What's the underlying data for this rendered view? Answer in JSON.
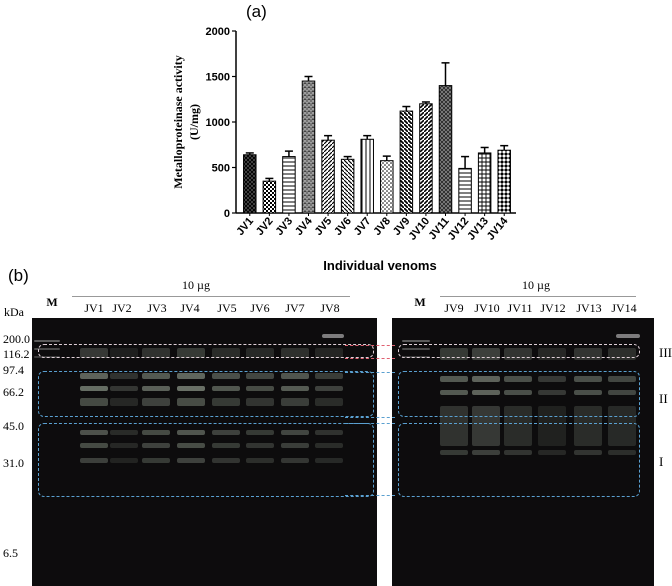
{
  "panel_a_label": "(a)",
  "panel_b_label": "(b)",
  "chart_data": {
    "type": "bar",
    "title": "",
    "xlabel": "Individual venoms",
    "ylabel": "Metalloproteinase activity\n(U/mg)",
    "ylim": [
      0,
      2000
    ],
    "yticks": [
      0,
      500,
      1000,
      1500,
      2000
    ],
    "grid": false,
    "categories": [
      "JV1",
      "JV2",
      "JV3",
      "JV4",
      "JV5",
      "JV6",
      "JV7",
      "JV8",
      "JV9",
      "JV10",
      "JV11",
      "JV12",
      "JV13",
      "JV14"
    ],
    "values": [
      640,
      350,
      620,
      1450,
      800,
      590,
      810,
      575,
      1120,
      1200,
      1400,
      490,
      660,
      690
    ],
    "errors": [
      20,
      30,
      60,
      50,
      50,
      30,
      40,
      50,
      50,
      20,
      250,
      130,
      60,
      50
    ],
    "patterns": [
      "crosshatch-dark",
      "checker",
      "hlines",
      "brick",
      "diag-right",
      "diag-left",
      "vlines",
      "dots",
      "diag-left-thick",
      "diag-right-thin",
      "crosshatch",
      "hlines-wide",
      "grid",
      "diamond"
    ]
  },
  "gel": {
    "kda_label": "kDa",
    "marker_lane_label": "M",
    "dose_label": "10 µg",
    "left_lanes": [
      "JV1",
      "JV2",
      "JV3",
      "JV4",
      "JV5",
      "JV6",
      "JV7",
      "JV8"
    ],
    "right_lanes": [
      "JV9",
      "JV10",
      "JV11",
      "JV12",
      "JV13",
      "JV14"
    ],
    "markers": [
      "200.0",
      "116.2",
      "97.4",
      "66.2",
      "45.0",
      "31.0",
      "6.5"
    ],
    "regions": [
      "III",
      "II",
      "I"
    ]
  }
}
